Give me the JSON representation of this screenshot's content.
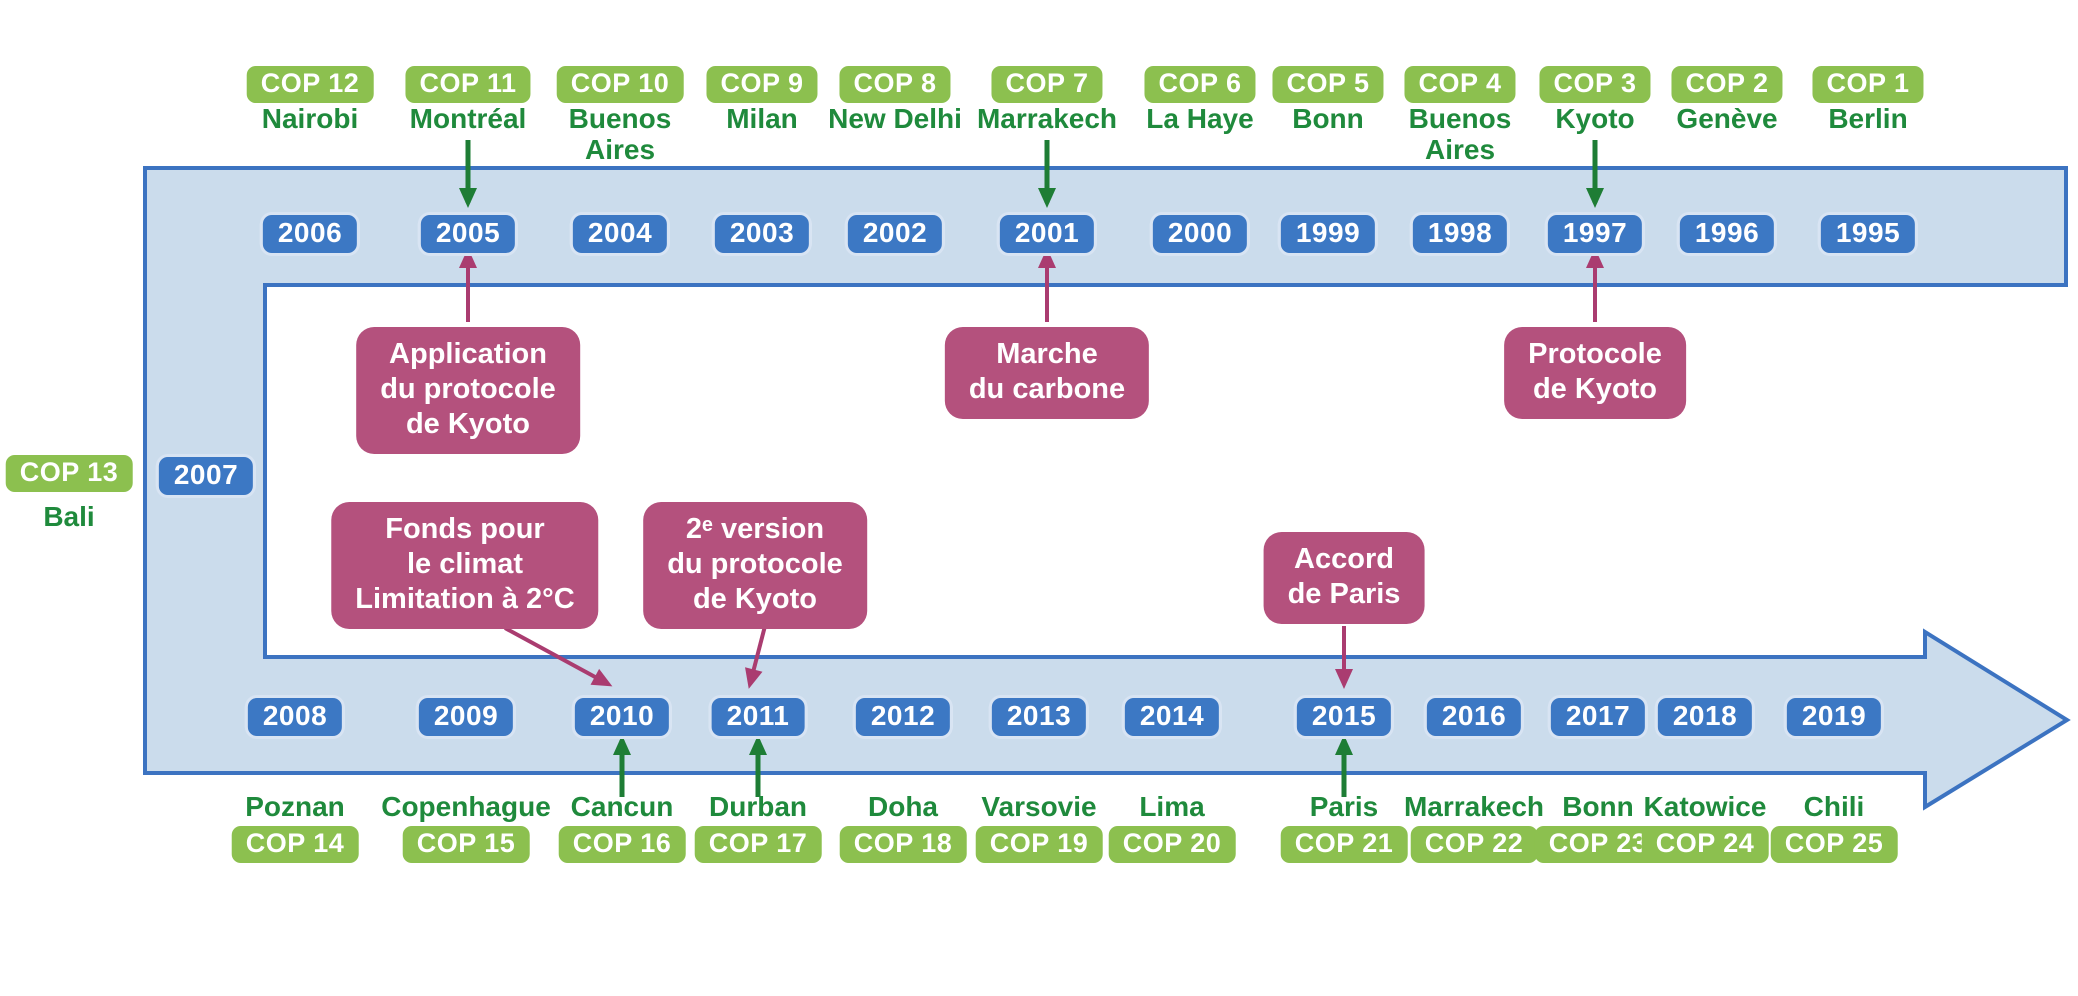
{
  "colors": {
    "badge_green": "#8cc04f",
    "text_green": "#1f8a3c",
    "badge_blue": "#3c78c4",
    "band_fill": "#cbdcec",
    "band_border": "#3c73c1",
    "event_pink": "#b4517d",
    "arrow_pink": "#aa3c70",
    "arrow_green": "#1e7d35"
  },
  "top_row": [
    {
      "cop": "COP 12",
      "city_lines": [
        "Nairobi"
      ],
      "year": "2006",
      "arrow_from_cop": false
    },
    {
      "cop": "COP 11",
      "city_lines": [
        "Montréal"
      ],
      "year": "2005",
      "arrow_from_cop": true
    },
    {
      "cop": "COP 10",
      "city_lines": [
        "Buenos",
        "Aires"
      ],
      "year": "2004",
      "arrow_from_cop": false
    },
    {
      "cop": "COP 9",
      "city_lines": [
        "Milan"
      ],
      "year": "2003",
      "arrow_from_cop": false
    },
    {
      "cop": "COP 8",
      "city_lines": [
        "New Delhi"
      ],
      "year": "2002",
      "arrow_from_cop": false
    },
    {
      "cop": "COP 7",
      "city_lines": [
        "Marrakech"
      ],
      "year": "2001",
      "arrow_from_cop": true
    },
    {
      "cop": "COP 6",
      "city_lines": [
        "La Haye"
      ],
      "year": "2000",
      "arrow_from_cop": false
    },
    {
      "cop": "COP 5",
      "city_lines": [
        "Bonn"
      ],
      "year": "1999",
      "arrow_from_cop": false
    },
    {
      "cop": "COP 4",
      "city_lines": [
        "Buenos",
        "Aires"
      ],
      "year": "1998",
      "arrow_from_cop": false
    },
    {
      "cop": "COP 3",
      "city_lines": [
        "Kyoto"
      ],
      "year": "1997",
      "arrow_from_cop": true
    },
    {
      "cop": "COP 2",
      "city_lines": [
        "Genève"
      ],
      "year": "1996",
      "arrow_from_cop": false
    },
    {
      "cop": "COP 1",
      "city_lines": [
        "Berlin"
      ],
      "year": "1995",
      "arrow_from_cop": false
    }
  ],
  "left_column": {
    "cop": "COP 13",
    "city": "Bali",
    "year": "2007"
  },
  "bottom_row": [
    {
      "year": "2008",
      "city_lines": [
        "Poznan"
      ],
      "cop": "COP 14",
      "arrow_to_year": false
    },
    {
      "year": "2009",
      "city_lines": [
        "Copenhague"
      ],
      "cop": "COP 15",
      "arrow_to_year": false
    },
    {
      "year": "2010",
      "city_lines": [
        "Cancun"
      ],
      "cop": "COP 16",
      "arrow_to_year": true
    },
    {
      "year": "2011",
      "city_lines": [
        "Durban"
      ],
      "cop": "COP 17",
      "arrow_to_year": true
    },
    {
      "year": "2012",
      "city_lines": [
        "Doha"
      ],
      "cop": "COP 18",
      "arrow_to_year": false
    },
    {
      "year": "2013",
      "city_lines": [
        "Varsovie"
      ],
      "cop": "COP 19",
      "arrow_to_year": false
    },
    {
      "year": "2014",
      "city_lines": [
        "Lima"
      ],
      "cop": "COP 20",
      "arrow_to_year": false
    },
    {
      "year": "2015",
      "city_lines": [
        "Paris"
      ],
      "cop": "COP 21",
      "arrow_to_year": true
    },
    {
      "year": "2016",
      "city_lines": [
        "Marrakech"
      ],
      "cop": "COP 22",
      "arrow_to_year": false
    },
    {
      "year": "2017",
      "city_lines": [
        "Bonn"
      ],
      "cop": "COP 23",
      "arrow_to_year": false
    },
    {
      "year": "2018",
      "city_lines": [
        "Katowice"
      ],
      "cop": "COP 24",
      "arrow_to_year": false
    },
    {
      "year": "2019",
      "city_lines": [
        "Chili"
      ],
      "cop": "COP 25",
      "arrow_to_year": false
    }
  ],
  "events_top": [
    {
      "lines": [
        "Application",
        "du protocole",
        "de Kyoto"
      ],
      "target_year": "2005"
    },
    {
      "lines": [
        "Marche",
        "du carbone"
      ],
      "target_year": "2001"
    },
    {
      "lines": [
        "Protocole",
        "de Kyoto"
      ],
      "target_year": "1997"
    }
  ],
  "events_bottom": [
    {
      "lines": [
        "Fonds pour",
        "le climat",
        "Limitation à 2°C"
      ],
      "target_year": "2010"
    },
    {
      "lines": [
        "2ᵉ version",
        "du protocole",
        "de Kyoto"
      ],
      "target_year": "2011"
    },
    {
      "lines": [
        "Accord",
        "de Paris"
      ],
      "target_year": "2015"
    }
  ]
}
